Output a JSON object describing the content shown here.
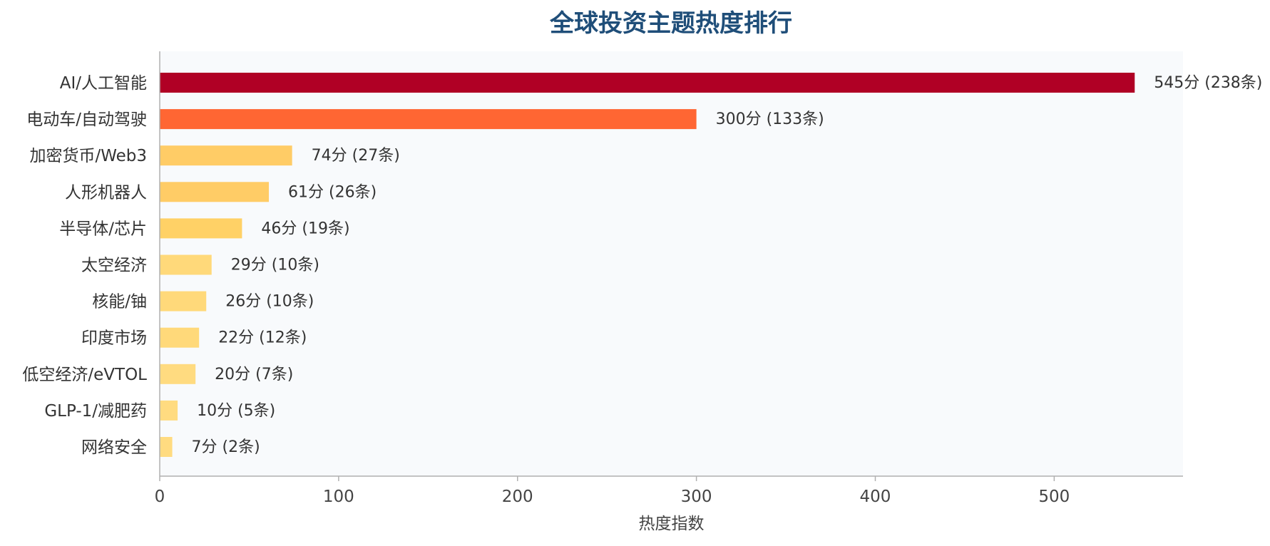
{
  "chart_data": {
    "type": "bar",
    "orientation": "horizontal",
    "title": "全球投资主题热度排行",
    "xlabel": "热度指数",
    "ylabel": "",
    "xlim": [
      0,
      572
    ],
    "xticks": [
      0,
      100,
      200,
      300,
      400,
      500
    ],
    "grid": false,
    "categories": [
      "AI/人工智能",
      "电动车/自动驾驶",
      "加密货币/Web3",
      "人形机器人",
      "半导体/芯片",
      "太空经济",
      "核能/铀",
      "印度市场",
      "低空经济/eVTOL",
      "GLP-1/减肥药",
      "网络安全"
    ],
    "values": [
      545,
      300,
      74,
      61,
      46,
      29,
      26,
      22,
      20,
      10,
      7
    ],
    "counts": [
      238,
      133,
      27,
      26,
      19,
      10,
      10,
      12,
      7,
      5,
      2
    ],
    "data_labels": [
      "545分 (238条)",
      "300分 (133条)",
      "74分 (27条)",
      "61分 (26条)",
      "46分 (19条)",
      "29分 (10条)",
      "26分 (10条)",
      "22分 (12条)",
      "20分 (7条)",
      "10分 (5条)",
      "7分 (2条)"
    ],
    "colors": [
      "#b00025",
      "#ff6633",
      "#ffcc66",
      "#ffcc66",
      "#ffd166",
      "#ffd97a",
      "#ffd97a",
      "#ffd97a",
      "#ffdb80",
      "#ffdb80",
      "#ffdb80"
    ],
    "plot_background": "#f8fafc",
    "title_color": "#1f4e79"
  }
}
